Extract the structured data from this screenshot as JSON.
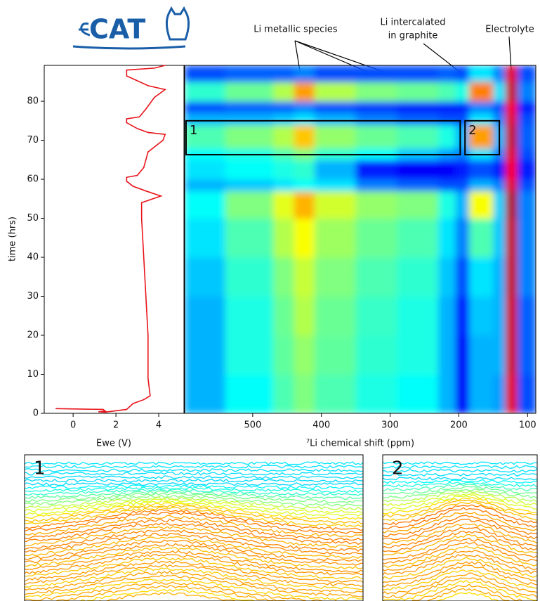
{
  "logo": "CAT",
  "annotations": [
    {
      "lines": [
        "Li metallic species"
      ]
    },
    {
      "lines": [
        "Li intercalated",
        "in graphite"
      ]
    },
    {
      "lines": [
        "Electrolyte"
      ]
    }
  ],
  "chart_data": [
    {
      "type": "line",
      "x_label": "Ewe (V)",
      "y_label": "time (hrs)",
      "xlim": [
        -1.35,
        5.18
      ],
      "xticks": [
        0,
        2,
        4
      ],
      "ylim": [
        0,
        89.2
      ],
      "yticks": [
        0,
        10,
        20,
        30,
        40,
        50,
        60,
        70,
        80
      ],
      "series": [
        {
          "color": "#e8141b",
          "x": [
            -0.8,
            1.4,
            1.5,
            1.2,
            1.5,
            2.5,
            2.8,
            3.3,
            3.6,
            3.5,
            3.5,
            3.4,
            3.3,
            3.2,
            3.2,
            4.1,
            3.4,
            2.8,
            2.5,
            2.5,
            3.0,
            3.3,
            3.5,
            4.2,
            4.3,
            3.5,
            3.0,
            2.5,
            2.5,
            3.1,
            3.4,
            3.8,
            4.3,
            3.5,
            2.9,
            2.5,
            2.5,
            3.8,
            4.3
          ],
          "values": [
            1.2,
            1.0,
            0.6,
            0.4,
            0.3,
            1.0,
            2.5,
            3.5,
            4.5,
            9,
            20,
            30,
            40,
            50,
            54,
            55.7,
            57,
            58.2,
            59.5,
            60.5,
            61,
            63,
            67,
            70,
            71.5,
            72,
            73,
            74.5,
            75.5,
            76,
            78,
            81,
            83,
            84,
            85.5,
            86.5,
            88,
            88.5,
            89.2
          ]
        }
      ]
    },
    {
      "type": "heatmap",
      "x_label": "⁷Li chemical shift (ppm)",
      "xlim": [
        599,
        88
      ],
      "xticks": [
        500,
        400,
        300,
        200,
        100
      ],
      "ylim": [
        0,
        89.2
      ],
      "colormap": "jet",
      "x_edges": [
        599,
        540,
        470,
        440,
        410,
        350,
        290,
        230,
        205,
        185,
        150,
        132,
        115,
        88
      ],
      "y_edges": [
        0,
        10,
        20,
        30,
        40,
        50,
        57,
        60,
        65,
        68,
        74,
        77,
        80,
        85,
        89.2
      ],
      "z": [
        [
          0.3,
          0.38,
          0.45,
          0.5,
          0.45,
          0.4,
          0.38,
          0.3,
          0.12,
          0.3,
          0.28,
          0.9,
          0.2
        ],
        [
          0.3,
          0.4,
          0.47,
          0.52,
          0.47,
          0.42,
          0.4,
          0.3,
          0.12,
          0.3,
          0.3,
          0.92,
          0.22
        ],
        [
          0.3,
          0.4,
          0.48,
          0.55,
          0.48,
          0.43,
          0.4,
          0.3,
          0.15,
          0.32,
          0.3,
          0.92,
          0.22
        ],
        [
          0.32,
          0.42,
          0.5,
          0.57,
          0.5,
          0.45,
          0.42,
          0.32,
          0.2,
          0.35,
          0.3,
          0.93,
          0.25
        ],
        [
          0.35,
          0.45,
          0.55,
          0.62,
          0.53,
          0.48,
          0.45,
          0.35,
          0.25,
          0.45,
          0.32,
          0.93,
          0.25
        ],
        [
          0.38,
          0.5,
          0.6,
          0.7,
          0.58,
          0.52,
          0.5,
          0.4,
          0.3,
          0.62,
          0.33,
          0.95,
          0.25
        ],
        [
          0.3,
          0.32,
          0.35,
          0.38,
          0.35,
          0.25,
          0.22,
          0.2,
          0.2,
          0.3,
          0.25,
          0.9,
          0.2
        ],
        [
          0.35,
          0.38,
          0.4,
          0.42,
          0.3,
          0.15,
          0.12,
          0.12,
          0.15,
          0.2,
          0.15,
          0.88,
          0.15
        ],
        [
          0.38,
          0.4,
          0.45,
          0.5,
          0.42,
          0.38,
          0.32,
          0.28,
          0.25,
          0.35,
          0.25,
          0.9,
          0.2
        ],
        [
          0.45,
          0.5,
          0.55,
          0.68,
          0.52,
          0.48,
          0.45,
          0.4,
          0.3,
          0.72,
          0.3,
          0.93,
          0.22
        ],
        [
          0.3,
          0.3,
          0.32,
          0.35,
          0.3,
          0.25,
          0.22,
          0.2,
          0.2,
          0.35,
          0.25,
          0.9,
          0.2
        ],
        [
          0.2,
          0.22,
          0.22,
          0.25,
          0.2,
          0.18,
          0.15,
          0.15,
          0.15,
          0.25,
          0.2,
          0.88,
          0.15
        ],
        [
          0.42,
          0.48,
          0.55,
          0.72,
          0.55,
          0.5,
          0.48,
          0.45,
          0.4,
          0.75,
          0.35,
          0.93,
          0.25
        ],
        [
          0.2,
          0.22,
          0.22,
          0.25,
          0.2,
          0.2,
          0.2,
          0.22,
          0.2,
          0.35,
          0.25,
          0.9,
          0.2
        ]
      ],
      "regions": [
        {
          "label": "1",
          "xlim": [
            597,
            198
          ],
          "ylim": [
            66.3,
            75
          ]
        },
        {
          "label": "2",
          "xlim": [
            191,
            141
          ],
          "ylim": [
            66.3,
            75
          ]
        }
      ]
    }
  ]
}
